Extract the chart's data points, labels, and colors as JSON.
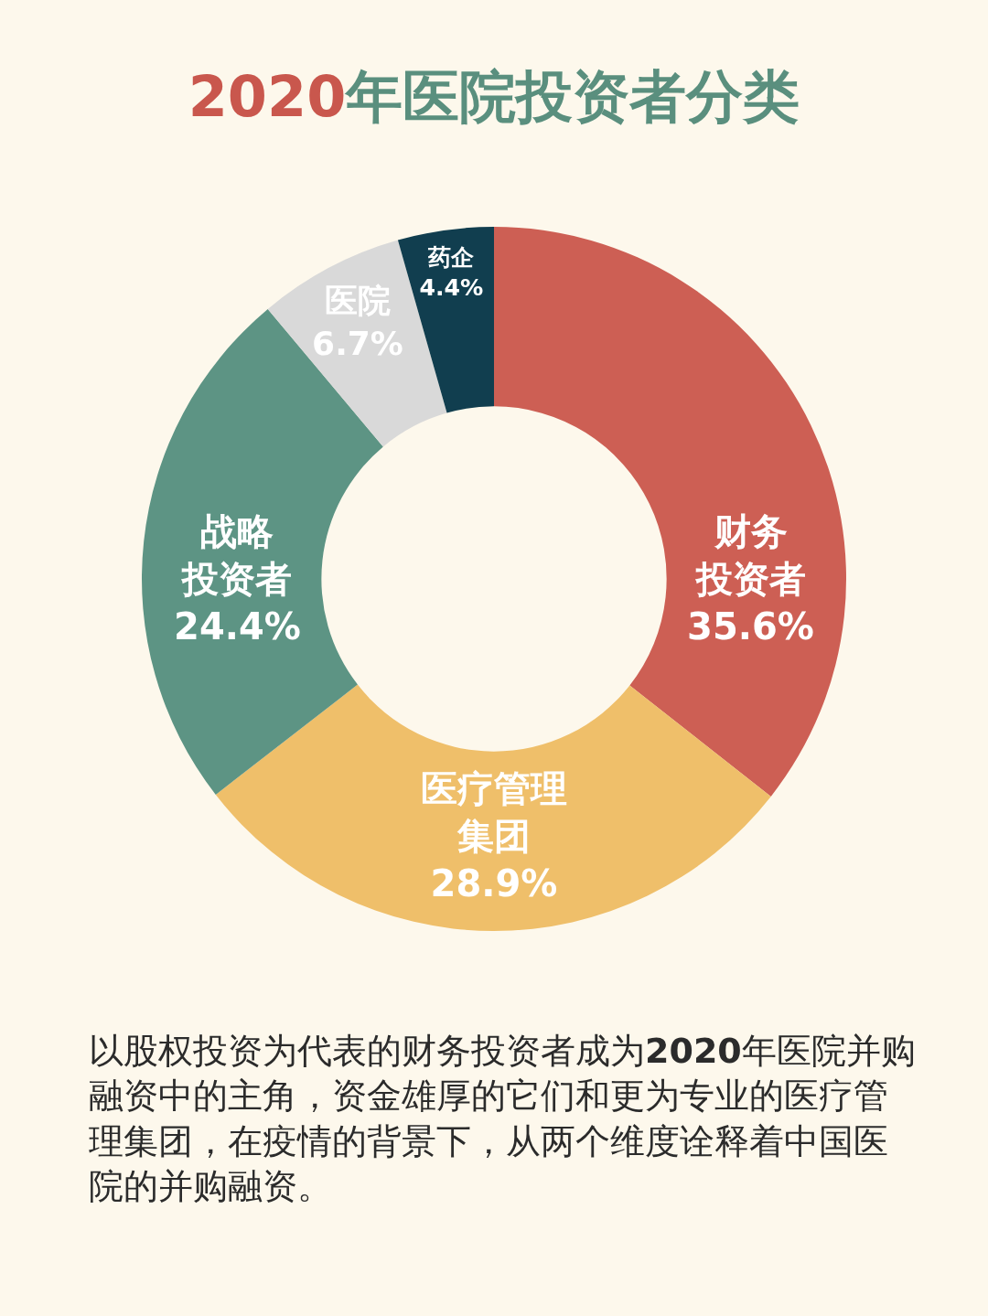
{
  "chart_data": {
    "type": "donut",
    "title": "2020年医院投资者分类",
    "categories": [
      "财务投资者",
      "医疗管理集团",
      "战略投资者",
      "医院",
      "药企"
    ],
    "values": [
      35.6,
      28.9,
      24.4,
      6.7,
      4.4
    ],
    "value_labels": [
      "35.6%",
      "28.9%",
      "24.4%",
      "6.7%",
      "4.4%"
    ],
    "colors": [
      "#cd5f54",
      "#efbf6a",
      "#5d9484",
      "#d9d9d9",
      "#113e4f"
    ],
    "legend": false,
    "annotations": [
      "以股权投资为代表的财务投资者成为2020年医院并购融资中的主角，资金雄厚的它们和更为专业的医疗管理集团，在疫情的背景下，从两个维度诠释着中国医院的并购融资。"
    ]
  }
}
